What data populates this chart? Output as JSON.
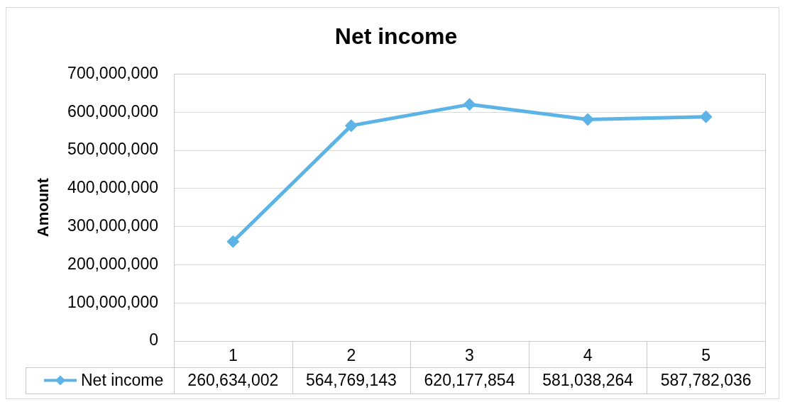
{
  "chart_data": {
    "type": "line",
    "title": "Net income",
    "ylabel": "Amount",
    "categories": [
      "1",
      "2",
      "3",
      "4",
      "5"
    ],
    "series": [
      {
        "name": "Net income",
        "color": "#5cb3e6",
        "values": [
          260634002,
          564769143,
          620177854,
          581038264,
          587782036
        ],
        "value_labels": [
          "260,634,002",
          "564,769,143",
          "620,177,854",
          "581,038,264",
          "587,782,036"
        ]
      }
    ],
    "ylim": [
      0,
      700000000
    ],
    "yticks": [
      {
        "value": 0,
        "label": "0"
      },
      {
        "value": 100000000,
        "label": "100,000,000"
      },
      {
        "value": 200000000,
        "label": "200,000,000"
      },
      {
        "value": 300000000,
        "label": "300,000,000"
      },
      {
        "value": 400000000,
        "label": "400,000,000"
      },
      {
        "value": 500000000,
        "label": "500,000,000"
      },
      {
        "value": 600000000,
        "label": "600,000,000"
      },
      {
        "value": 700000000,
        "label": "700,000,000"
      }
    ],
    "grid": "y",
    "legend": "bottom",
    "marker": "diamond",
    "line_style": "solid"
  }
}
